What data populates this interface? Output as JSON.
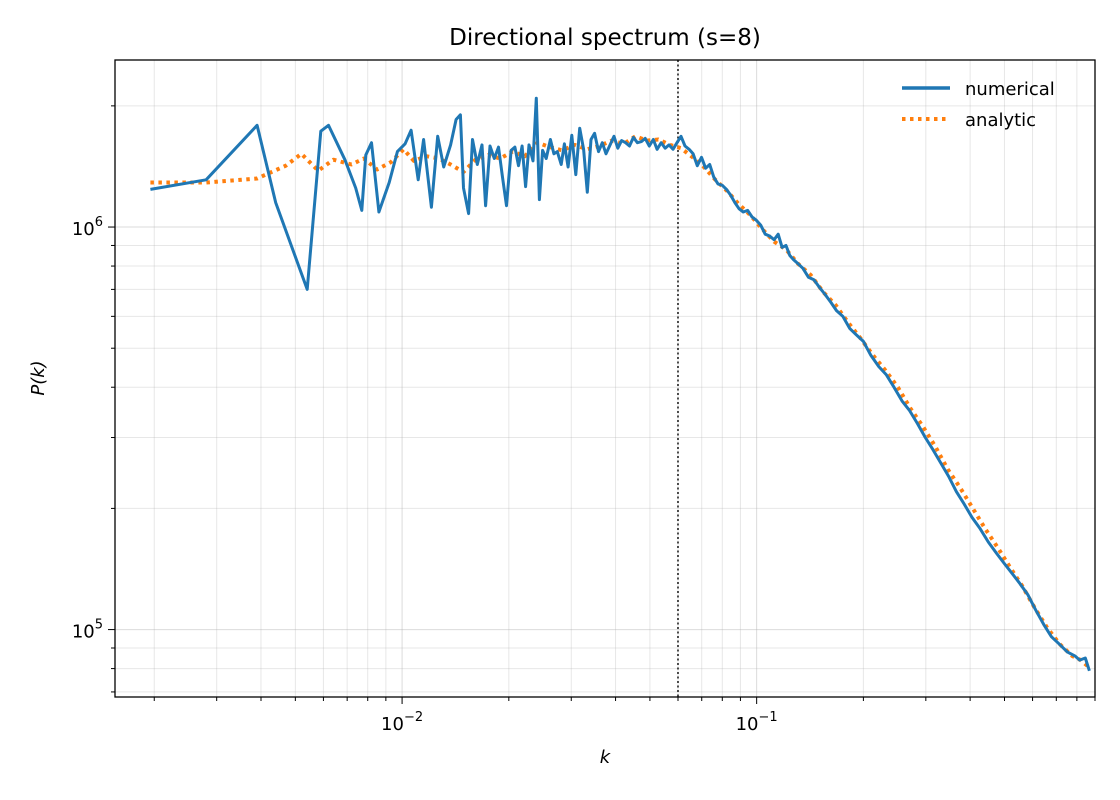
{
  "chart_data": {
    "type": "line",
    "title": "Directional spectrum  (s=8)",
    "xlabel": "k",
    "ylabel": "P(k)",
    "xscale": "log",
    "yscale": "log",
    "xlim": [
      0.00155,
      0.9
    ],
    "ylim": [
      68000,
      2600000
    ],
    "grid": true,
    "legend_position": "top-right",
    "x_tick_labels": [
      {
        "value": 0.01,
        "label": "10^-2"
      },
      {
        "value": 0.1,
        "label": "10^-1"
      }
    ],
    "y_tick_labels": [
      {
        "value": 100000,
        "label": "10^5"
      },
      {
        "value": 1000000,
        "label": "10^6"
      }
    ],
    "vline": {
      "x": 0.06,
      "style": "dotted",
      "color": "#000000"
    },
    "series": [
      {
        "name": "numerical",
        "color": "#1f77b4",
        "style": "solid",
        "points": [
          [
            0.00195,
            1240000
          ],
          [
            0.0028,
            1310000
          ],
          [
            0.0039,
            1790000
          ],
          [
            0.0044,
            1150000
          ],
          [
            0.0054,
            700000
          ],
          [
            0.0059,
            1730000
          ],
          [
            0.0062,
            1790000
          ],
          [
            0.0069,
            1470000
          ],
          [
            0.0074,
            1250000
          ],
          [
            0.0077,
            1100000
          ],
          [
            0.0079,
            1510000
          ],
          [
            0.0082,
            1620000
          ],
          [
            0.0086,
            1090000
          ],
          [
            0.0092,
            1290000
          ],
          [
            0.0097,
            1540000
          ],
          [
            0.0102,
            1610000
          ],
          [
            0.0106,
            1740000
          ],
          [
            0.0111,
            1310000
          ],
          [
            0.0115,
            1650000
          ],
          [
            0.0121,
            1120000
          ],
          [
            0.0126,
            1680000
          ],
          [
            0.0131,
            1410000
          ],
          [
            0.0137,
            1600000
          ],
          [
            0.0142,
            1850000
          ],
          [
            0.0146,
            1900000
          ],
          [
            0.0149,
            1250000
          ],
          [
            0.0154,
            1080000
          ],
          [
            0.0158,
            1650000
          ],
          [
            0.0163,
            1430000
          ],
          [
            0.0168,
            1600000
          ],
          [
            0.0172,
            1130000
          ],
          [
            0.0177,
            1590000
          ],
          [
            0.0182,
            1480000
          ],
          [
            0.0187,
            1580000
          ],
          [
            0.0192,
            1330000
          ],
          [
            0.0197,
            1130000
          ],
          [
            0.0203,
            1550000
          ],
          [
            0.0208,
            1580000
          ],
          [
            0.0213,
            1420000
          ],
          [
            0.0218,
            1590000
          ],
          [
            0.0223,
            1260000
          ],
          [
            0.0228,
            1600000
          ],
          [
            0.0234,
            1460000
          ],
          [
            0.0239,
            2090000
          ],
          [
            0.0244,
            1170000
          ],
          [
            0.0249,
            1550000
          ],
          [
            0.0255,
            1480000
          ],
          [
            0.0262,
            1650000
          ],
          [
            0.0268,
            1520000
          ],
          [
            0.0274,
            1540000
          ],
          [
            0.0281,
            1430000
          ],
          [
            0.0287,
            1610000
          ],
          [
            0.0294,
            1410000
          ],
          [
            0.0301,
            1690000
          ],
          [
            0.0309,
            1350000
          ],
          [
            0.0317,
            1760000
          ],
          [
            0.0325,
            1560000
          ],
          [
            0.0333,
            1220000
          ],
          [
            0.0341,
            1650000
          ],
          [
            0.0349,
            1710000
          ],
          [
            0.0358,
            1540000
          ],
          [
            0.0367,
            1620000
          ],
          [
            0.0376,
            1520000
          ],
          [
            0.0386,
            1600000
          ],
          [
            0.0396,
            1680000
          ],
          [
            0.0406,
            1570000
          ],
          [
            0.0416,
            1640000
          ],
          [
            0.0427,
            1620000
          ],
          [
            0.0438,
            1590000
          ],
          [
            0.0449,
            1670000
          ],
          [
            0.0461,
            1620000
          ],
          [
            0.0473,
            1630000
          ],
          [
            0.0485,
            1660000
          ],
          [
            0.0498,
            1590000
          ],
          [
            0.0511,
            1650000
          ],
          [
            0.0524,
            1560000
          ],
          [
            0.0538,
            1620000
          ],
          [
            0.0552,
            1570000
          ],
          [
            0.0566,
            1600000
          ],
          [
            0.0581,
            1560000
          ],
          [
            0.0596,
            1620000
          ],
          [
            0.0612,
            1680000
          ],
          [
            0.0628,
            1590000
          ],
          [
            0.0645,
            1560000
          ],
          [
            0.0662,
            1520000
          ],
          [
            0.068,
            1420000
          ],
          [
            0.0699,
            1490000
          ],
          [
            0.0718,
            1400000
          ],
          [
            0.0737,
            1430000
          ],
          [
            0.0757,
            1330000
          ],
          [
            0.0778,
            1280000
          ],
          [
            0.08,
            1270000
          ],
          [
            0.0822,
            1240000
          ],
          [
            0.0845,
            1200000
          ],
          [
            0.0868,
            1150000
          ],
          [
            0.0892,
            1110000
          ],
          [
            0.0917,
            1090000
          ],
          [
            0.0943,
            1100000
          ],
          [
            0.097,
            1060000
          ],
          [
            0.0998,
            1040000
          ],
          [
            0.1027,
            1010000
          ],
          [
            0.1057,
            960000
          ],
          [
            0.1088,
            950000
          ],
          [
            0.112,
            930000
          ],
          [
            0.115,
            960000
          ],
          [
            0.118,
            890000
          ],
          [
            0.121,
            900000
          ],
          [
            0.124,
            850000
          ],
          [
            0.127,
            830000
          ],
          [
            0.131,
            810000
          ],
          [
            0.135,
            790000
          ],
          [
            0.14,
            750000
          ],
          [
            0.145,
            740000
          ],
          [
            0.15,
            710000
          ],
          [
            0.156,
            680000
          ],
          [
            0.162,
            650000
          ],
          [
            0.168,
            620000
          ],
          [
            0.175,
            600000
          ],
          [
            0.183,
            560000
          ],
          [
            0.191,
            540000
          ],
          [
            0.2,
            520000
          ],
          [
            0.21,
            480000
          ],
          [
            0.221,
            450000
          ],
          [
            0.232,
            430000
          ],
          [
            0.244,
            400000
          ],
          [
            0.257,
            370000
          ],
          [
            0.27,
            350000
          ],
          [
            0.284,
            325000
          ],
          [
            0.299,
            300000
          ],
          [
            0.314,
            280000
          ],
          [
            0.33,
            260000
          ],
          [
            0.348,
            240000
          ],
          [
            0.366,
            220000
          ],
          [
            0.385,
            205000
          ],
          [
            0.405,
            190000
          ],
          [
            0.427,
            178000
          ],
          [
            0.45,
            165000
          ],
          [
            0.474,
            155000
          ],
          [
            0.499,
            146000
          ],
          [
            0.525,
            138000
          ],
          [
            0.553,
            130000
          ],
          [
            0.582,
            122000
          ],
          [
            0.612,
            112000
          ],
          [
            0.645,
            103000
          ],
          [
            0.678,
            96000
          ],
          [
            0.714,
            92000
          ],
          [
            0.752,
            88000
          ],
          [
            0.79,
            86000
          ],
          [
            0.815,
            84000
          ],
          [
            0.845,
            85000
          ],
          [
            0.868,
            79000
          ]
        ]
      },
      {
        "name": "analytic",
        "color": "#ff7f0e",
        "style": "dotted",
        "points": [
          [
            0.00195,
            1290000
          ],
          [
            0.0028,
            1290000
          ],
          [
            0.0039,
            1320000
          ],
          [
            0.0047,
            1420000
          ],
          [
            0.0052,
            1520000
          ],
          [
            0.0058,
            1380000
          ],
          [
            0.0064,
            1470000
          ],
          [
            0.0072,
            1430000
          ],
          [
            0.0078,
            1480000
          ],
          [
            0.0085,
            1390000
          ],
          [
            0.0093,
            1450000
          ],
          [
            0.0101,
            1560000
          ],
          [
            0.0108,
            1460000
          ],
          [
            0.0117,
            1500000
          ],
          [
            0.0127,
            1480000
          ],
          [
            0.0137,
            1430000
          ],
          [
            0.0149,
            1370000
          ],
          [
            0.0161,
            1470000
          ],
          [
            0.0175,
            1510000
          ],
          [
            0.0189,
            1480000
          ],
          [
            0.0205,
            1540000
          ],
          [
            0.0222,
            1500000
          ],
          [
            0.0241,
            1620000
          ],
          [
            0.0261,
            1580000
          ],
          [
            0.0283,
            1550000
          ],
          [
            0.0307,
            1600000
          ],
          [
            0.0332,
            1560000
          ],
          [
            0.036,
            1590000
          ],
          [
            0.039,
            1640000
          ],
          [
            0.0422,
            1610000
          ],
          [
            0.0455,
            1680000
          ],
          [
            0.049,
            1640000
          ],
          [
            0.0528,
            1650000
          ],
          [
            0.057,
            1600000
          ],
          [
            0.0612,
            1570000
          ],
          [
            0.066,
            1490000
          ],
          [
            0.071,
            1410000
          ],
          [
            0.0765,
            1310000
          ],
          [
            0.0825,
            1230000
          ],
          [
            0.089,
            1140000
          ],
          [
            0.096,
            1070000
          ],
          [
            0.1035,
            990000
          ],
          [
            0.112,
            920000
          ],
          [
            0.121,
            880000
          ],
          [
            0.131,
            810000
          ],
          [
            0.142,
            760000
          ],
          [
            0.154,
            690000
          ],
          [
            0.167,
            640000
          ],
          [
            0.181,
            580000
          ],
          [
            0.196,
            530000
          ],
          [
            0.213,
            480000
          ],
          [
            0.231,
            440000
          ],
          [
            0.25,
            400000
          ],
          [
            0.271,
            355000
          ],
          [
            0.294,
            320000
          ],
          [
            0.319,
            285000
          ],
          [
            0.346,
            250000
          ],
          [
            0.375,
            225000
          ],
          [
            0.407,
            200000
          ],
          [
            0.441,
            178000
          ],
          [
            0.478,
            160000
          ],
          [
            0.518,
            143000
          ],
          [
            0.562,
            128000
          ],
          [
            0.609,
            113000
          ],
          [
            0.66,
            101000
          ],
          [
            0.716,
            92000
          ],
          [
            0.776,
            86000
          ],
          [
            0.82,
            84000
          ],
          [
            0.86,
            81000
          ]
        ]
      }
    ]
  }
}
